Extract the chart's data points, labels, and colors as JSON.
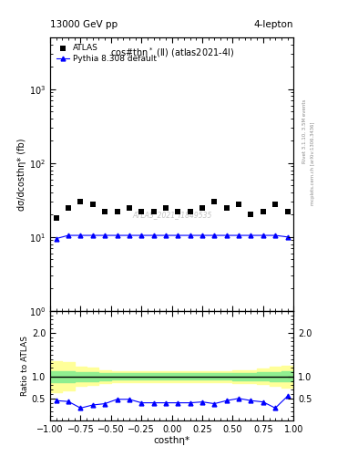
{
  "title_left": "13000 GeV pp",
  "title_right": "4-lepton",
  "plot_title": "cos#thη* (ll) (atlas2021-4l)",
  "xlabel": "costhη*",
  "ylabel_main": "dσ/dcosthη* (fb)",
  "ylabel_ratio": "Ratio to ATLAS",
  "right_label": "Rivet 3.1.10, 3.5M events",
  "right_label2": "mcplots.cern.ch [arXiv:1306.3436]",
  "watermark": "ATLAS_2021_I1849535",
  "atlas_x": [
    -0.95,
    -0.85,
    -0.75,
    -0.65,
    -0.55,
    -0.45,
    -0.35,
    -0.25,
    -0.15,
    -0.05,
    0.05,
    0.15,
    0.25,
    0.35,
    0.45,
    0.55,
    0.65,
    0.75,
    0.85,
    0.95
  ],
  "atlas_y": [
    18,
    25,
    30,
    28,
    22,
    22,
    25,
    22,
    22,
    25,
    22,
    22,
    25,
    30,
    25,
    28,
    20,
    22,
    28,
    22
  ],
  "pythia_x": [
    -0.95,
    -0.85,
    -0.75,
    -0.65,
    -0.55,
    -0.45,
    -0.35,
    -0.25,
    -0.15,
    -0.05,
    0.05,
    0.15,
    0.25,
    0.35,
    0.45,
    0.55,
    0.65,
    0.75,
    0.85,
    0.95
  ],
  "pythia_y": [
    9.5,
    10.5,
    10.5,
    10.5,
    10.5,
    10.5,
    10.5,
    10.5,
    10.5,
    10.5,
    10.5,
    10.5,
    10.5,
    10.5,
    10.5,
    10.5,
    10.5,
    10.5,
    10.5,
    10.0
  ],
  "ratio_x": [
    -0.95,
    -0.85,
    -0.75,
    -0.65,
    -0.55,
    -0.45,
    -0.35,
    -0.25,
    -0.15,
    -0.05,
    0.05,
    0.15,
    0.25,
    0.35,
    0.45,
    0.55,
    0.65,
    0.75,
    0.85,
    0.95
  ],
  "ratio_y": [
    0.45,
    0.43,
    0.28,
    0.35,
    0.38,
    0.48,
    0.48,
    0.4,
    0.4,
    0.4,
    0.4,
    0.4,
    0.42,
    0.38,
    0.45,
    0.5,
    0.45,
    0.42,
    0.28,
    0.55
  ],
  "green_band_lo": [
    0.88,
    0.88,
    0.9,
    0.9,
    0.92,
    0.93,
    0.93,
    0.93,
    0.93,
    0.94,
    0.94,
    0.94,
    0.93,
    0.93,
    0.93,
    0.92,
    0.92,
    0.91,
    0.9,
    0.9
  ],
  "green_band_hi": [
    1.12,
    1.12,
    1.1,
    1.1,
    1.08,
    1.08,
    1.08,
    1.08,
    1.08,
    1.08,
    1.08,
    1.08,
    1.08,
    1.08,
    1.08,
    1.08,
    1.08,
    1.1,
    1.1,
    1.12
  ],
  "yellow_band_lo": [
    0.65,
    0.68,
    0.78,
    0.8,
    0.85,
    0.87,
    0.87,
    0.87,
    0.87,
    0.88,
    0.88,
    0.88,
    0.88,
    0.87,
    0.87,
    0.86,
    0.85,
    0.82,
    0.78,
    0.75
  ],
  "yellow_band_hi": [
    1.35,
    1.32,
    1.22,
    1.2,
    1.15,
    1.13,
    1.13,
    1.13,
    1.13,
    1.12,
    1.12,
    1.12,
    1.12,
    1.13,
    1.13,
    1.14,
    1.15,
    1.18,
    1.22,
    1.25
  ],
  "xlim": [
    -1.0,
    1.0
  ],
  "ylim_main": [
    1.0,
    5000
  ],
  "ylim_ratio": [
    0.0,
    2.5
  ],
  "ratio_yticks": [
    0.5,
    1.0,
    2.0
  ],
  "atlas_color": "black",
  "pythia_color": "blue",
  "green_color": "#90EE90",
  "yellow_color": "#FFFF99"
}
